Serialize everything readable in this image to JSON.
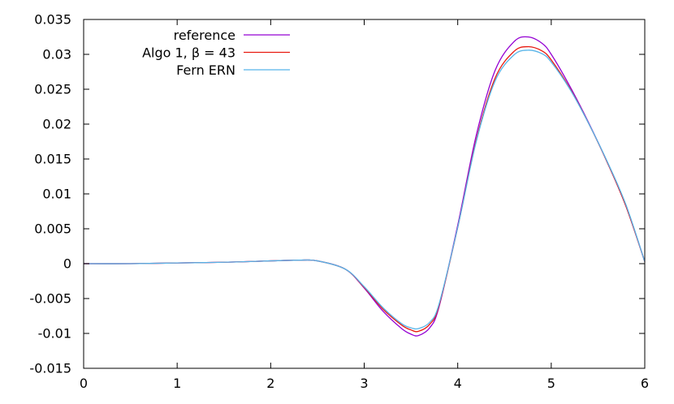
{
  "chart_data": {
    "type": "line",
    "title": "",
    "xlabel": "",
    "ylabel": "",
    "xlim": [
      0,
      6
    ],
    "ylim": [
      -0.015,
      0.035
    ],
    "grid": false,
    "legend_position": "top-left",
    "xticks": [
      {
        "value": 0,
        "label": "0"
      },
      {
        "value": 1,
        "label": "1"
      },
      {
        "value": 2,
        "label": "2"
      },
      {
        "value": 3,
        "label": "3"
      },
      {
        "value": 4,
        "label": "4"
      },
      {
        "value": 5,
        "label": "5"
      },
      {
        "value": 6,
        "label": "6"
      }
    ],
    "yticks": [
      {
        "value": -0.015,
        "label": "-0.015"
      },
      {
        "value": -0.01,
        "label": "-0.01"
      },
      {
        "value": -0.005,
        "label": "-0.005"
      },
      {
        "value": 0,
        "label": "0"
      },
      {
        "value": 0.005,
        "label": "0.005"
      },
      {
        "value": 0.01,
        "label": "0.01"
      },
      {
        "value": 0.015,
        "label": "0.015"
      },
      {
        "value": 0.02,
        "label": "0.02"
      },
      {
        "value": 0.025,
        "label": "0.025"
      },
      {
        "value": 0.03,
        "label": "0.03"
      },
      {
        "value": 0.035,
        "label": "0.035"
      }
    ],
    "series": [
      {
        "name": "reference",
        "color": "#9400d3",
        "x": [
          0,
          0.5,
          1,
          1.5,
          2,
          2.3,
          2.5,
          2.8,
          3,
          3.2,
          3.4,
          3.5,
          3.58,
          3.7,
          3.8,
          4,
          4.2,
          4.4,
          4.6,
          4.75,
          4.9,
          5,
          5.2,
          5.4,
          5.6,
          5.8,
          6
        ],
        "y": [
          0,
          0,
          0.0001,
          0.0002,
          0.0004,
          0.0005,
          0.0004,
          -0.0008,
          -0.0035,
          -0.0068,
          -0.0093,
          -0.0101,
          -0.0103,
          -0.0092,
          -0.0062,
          0.0055,
          0.0185,
          0.0277,
          0.0318,
          0.0325,
          0.0316,
          0.03,
          0.0254,
          0.0202,
          0.0145,
          0.0082,
          0.0003
        ]
      },
      {
        "name": "Algo 1, β = 43",
        "color": "#e8190f",
        "x": [
          0,
          0.5,
          1,
          1.5,
          2,
          2.3,
          2.5,
          2.8,
          3,
          3.2,
          3.4,
          3.5,
          3.58,
          3.7,
          3.8,
          4,
          4.2,
          4.4,
          4.6,
          4.75,
          4.9,
          5,
          5.2,
          5.4,
          5.6,
          5.8,
          6
        ],
        "y": [
          0,
          0,
          0.0001,
          0.0002,
          0.0004,
          0.0005,
          0.0004,
          -0.0008,
          -0.0034,
          -0.0065,
          -0.0088,
          -0.0095,
          -0.0097,
          -0.0087,
          -0.006,
          0.0052,
          0.0178,
          0.0266,
          0.0304,
          0.0311,
          0.0305,
          0.0292,
          0.0251,
          0.0201,
          0.0145,
          0.0082,
          0.0003
        ]
      },
      {
        "name": "Fern ERN",
        "color": "#56b4e9",
        "x": [
          0,
          0.5,
          1,
          1.5,
          2,
          2.3,
          2.5,
          2.8,
          3,
          3.2,
          3.4,
          3.5,
          3.58,
          3.7,
          3.8,
          4,
          4.2,
          4.4,
          4.6,
          4.75,
          4.9,
          5,
          5.2,
          5.4,
          5.6,
          5.8,
          6
        ],
        "y": [
          0,
          0,
          0.0001,
          0.0002,
          0.0004,
          0.0005,
          0.0004,
          -0.0008,
          -0.0033,
          -0.0063,
          -0.0086,
          -0.0092,
          -0.0093,
          -0.0084,
          -0.0058,
          0.0052,
          0.0176,
          0.0262,
          0.0299,
          0.0306,
          0.0301,
          0.0289,
          0.025,
          0.0201,
          0.0146,
          0.0084,
          0.0003
        ]
      }
    ]
  }
}
